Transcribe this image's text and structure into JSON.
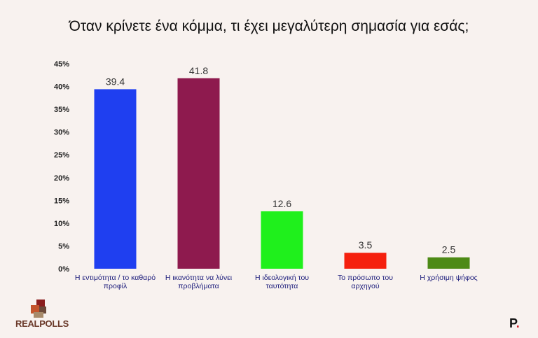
{
  "chart_data": {
    "type": "bar",
    "title": "Όταν κρίνετε ένα κόμμα, τι έχει μεγαλύτερη σημασία για εσάς;",
    "categories": [
      [
        "Η εντιμότητα / το καθαρό",
        "προφίλ"
      ],
      [
        "Η ικανότητα να λύνει",
        "προβλήματα"
      ],
      [
        "Η ιδεολογική του",
        "ταυτότητα"
      ],
      [
        "Το πρόσωπο του",
        "αρχηγού"
      ],
      [
        "Η χρήσιμη ψήφος"
      ]
    ],
    "values": [
      39.4,
      41.8,
      12.6,
      3.5,
      2.5
    ],
    "data_labels": [
      "39.4",
      "41.8",
      "12.6",
      "3.5",
      "2.5"
    ],
    "colors": [
      "#1f3ff0",
      "#8e1a4e",
      "#1ff01c",
      "#f5200e",
      "#4d8a16"
    ],
    "ylim": [
      0,
      45
    ],
    "yticks": [
      "0%",
      "5%",
      "10%",
      "15%",
      "20%",
      "25%",
      "30%",
      "35%",
      "40%",
      "45%"
    ],
    "grid": false,
    "legend": "none"
  },
  "logo_text": "REALPOLLS",
  "brand": {
    "letter": "P",
    "dot": "."
  }
}
